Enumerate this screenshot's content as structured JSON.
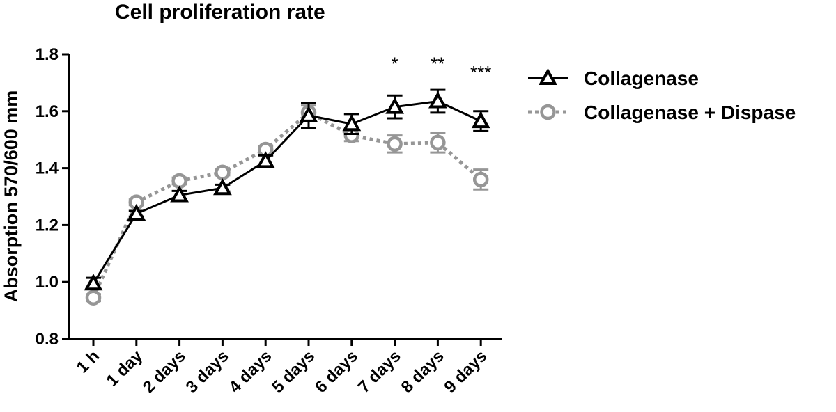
{
  "chart_data": {
    "type": "line",
    "title": "Cell proliferation rate",
    "xlabel": "",
    "ylabel": "Absorption 570/600 mm",
    "categories": [
      "1 h",
      "1 day",
      "2 days",
      "3 days",
      "4 days",
      "5 days",
      "6 days",
      "7 days",
      "8 days",
      "9 days"
    ],
    "ylim": [
      0.8,
      1.8
    ],
    "yticks": [
      "0.8",
      "1.0",
      "1.2",
      "1.4",
      "1.6",
      "1.8"
    ],
    "ytick_values": [
      0.8,
      1.0,
      1.2,
      1.4,
      1.6,
      1.8
    ],
    "series": [
      {
        "name": "Collagenase",
        "values": [
          0.995,
          1.24,
          1.305,
          1.33,
          1.425,
          1.585,
          1.555,
          1.615,
          1.635,
          1.565
        ],
        "errors": [
          0.02,
          0.01,
          0.015,
          0.012,
          0.02,
          0.045,
          0.035,
          0.04,
          0.04,
          0.035
        ],
        "color": "#000000",
        "marker": "triangle",
        "line_style": "solid"
      },
      {
        "name": "Collagenase + Dispase",
        "values": [
          0.945,
          1.28,
          1.355,
          1.385,
          1.465,
          1.595,
          1.515,
          1.485,
          1.49,
          1.36
        ],
        "errors": [
          0.012,
          0.01,
          0.012,
          0.01,
          0.012,
          0.025,
          0.02,
          0.03,
          0.035,
          0.035
        ],
        "color": "#969696",
        "marker": "circle",
        "line_style": "dotted"
      }
    ],
    "annotations": [
      {
        "category": "7 days",
        "text": "*",
        "y": 1.745
      },
      {
        "category": "8 days",
        "text": "**",
        "y": 1.745
      },
      {
        "category": "9 days",
        "text": "***",
        "y": 1.715
      }
    ],
    "legend_position": "right",
    "grid": false
  }
}
